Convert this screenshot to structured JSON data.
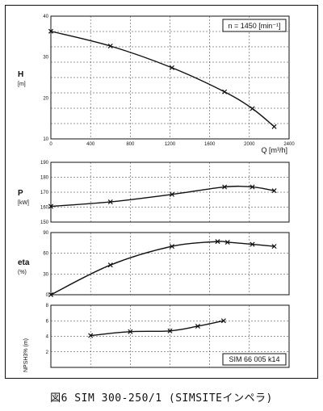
{
  "caption": "図6  SIM 300-250/1  (SIMSITEインペラ)",
  "chart_data": [
    {
      "id": "H",
      "type": "line",
      "ylabel": "H",
      "yunit": "[m]",
      "xlabel": "Q [m³/h]",
      "xlim": [
        0,
        2400
      ],
      "ylim": [
        10,
        40
      ],
      "xticks": [
        "0",
        "400",
        "800",
        "1200",
        "1600",
        "2000",
        "2400"
      ],
      "yticks": [
        "10",
        "20",
        "30",
        "40"
      ],
      "annotation": "n = 1450 [min⁻¹]",
      "x": [
        0,
        600,
        1220,
        1750,
        2030,
        2250
      ],
      "y": [
        36.3,
        32.7,
        27.4,
        21.5,
        17.4,
        13.0
      ]
    },
    {
      "id": "P",
      "type": "line",
      "ylabel": "P",
      "yunit": "[kW]",
      "xlim": [
        0,
        2400
      ],
      "ylim": [
        150,
        190
      ],
      "yticks": [
        "150",
        "160",
        "170",
        "180",
        "190"
      ],
      "x": [
        0,
        600,
        1220,
        1750,
        2030,
        2250
      ],
      "y": [
        160.5,
        163.5,
        168.5,
        173.5,
        173.5,
        171.0
      ]
    },
    {
      "id": "eta",
      "type": "line",
      "ylabel": "eta",
      "yunit": "(%)",
      "xlim": [
        0,
        2400
      ],
      "ylim": [
        0,
        90
      ],
      "yticks": [
        "0",
        "30",
        "60",
        "90"
      ],
      "x": [
        0,
        600,
        1220,
        1680,
        1780,
        2030,
        2250
      ],
      "y": [
        0,
        43,
        70,
        77,
        76,
        73,
        70
      ]
    },
    {
      "id": "NPSH",
      "type": "line",
      "ylabel": "NPSH3% (m)",
      "xlim": [
        0,
        2400
      ],
      "ylim": [
        0,
        8
      ],
      "yticks": [
        "2",
        "4",
        "6",
        "8"
      ],
      "annotation": "SIM 66 005 k14",
      "x": [
        400,
        800,
        1200,
        1480,
        1740
      ],
      "y": [
        4.1,
        4.6,
        4.7,
        5.3,
        6.0
      ]
    }
  ]
}
